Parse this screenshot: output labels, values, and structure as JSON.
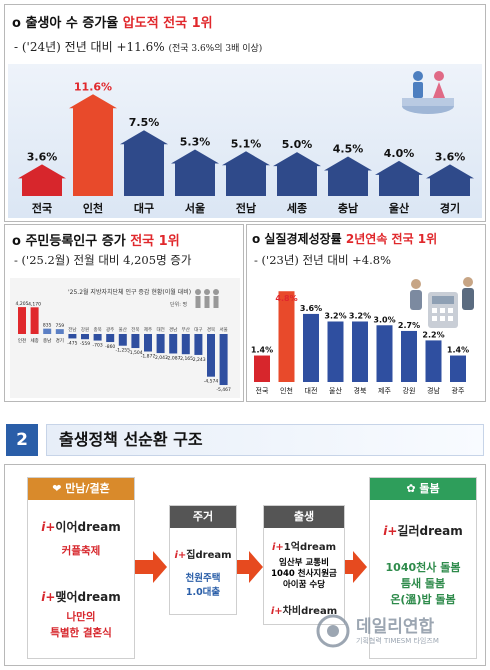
{
  "top": {
    "title_prefix": "출생아 수 증가율 ",
    "title_highlight": "압도적 전국 1위",
    "subtitle_main": "- ('24년) 전년 대비 +11.6% ",
    "subtitle_note": "(전국 3.6%의 3배 이상)"
  },
  "chart1": {
    "type": "bar",
    "categories": [
      "전국",
      "인천",
      "대구",
      "서울",
      "전남",
      "세종",
      "충남",
      "울산",
      "경기"
    ],
    "values": [
      3.6,
      11.6,
      7.5,
      5.3,
      5.1,
      5.0,
      4.5,
      4.0,
      3.6
    ],
    "value_labels": [
      "3.6%",
      "11.6%",
      "7.5%",
      "5.3%",
      "5.1%",
      "5.0%",
      "4.5%",
      "4.0%",
      "3.6%"
    ],
    "colors": [
      "#d7262c",
      "#e84a2b",
      "#2f4a8a",
      "#2f4a8a",
      "#2f4a8a",
      "#2f4a8a",
      "#2f4a8a",
      "#2f4a8a",
      "#2f4a8a"
    ],
    "ylim": [
      0,
      13
    ]
  },
  "left": {
    "title_prefix": "주민등록인구 증가 ",
    "title_highlight": "전국 1위",
    "subtitle": "- ('25.2월) 전월 대비 4,205명 증가"
  },
  "chart2": {
    "type": "bar",
    "title": "'25.2월 지방자치단체 인구 증감 현황(이월 대비)",
    "unit": "단위: 명",
    "categories": [
      "인천",
      "세종",
      "충남",
      "경기",
      "전남",
      "강원",
      "충북",
      "광주",
      "울산",
      "전북",
      "제주",
      "대전",
      "경남",
      "부산",
      "대구",
      "경북",
      "서울"
    ],
    "values": [
      4205,
      4170,
      835,
      759,
      -475,
      -559,
      -703,
      -860,
      -1255,
      -1504,
      -1877,
      -2043,
      -2087,
      -2165,
      -2243,
      -4574,
      -5467
    ],
    "value_labels": [
      "4,205",
      "4,170",
      "835",
      "759",
      "-475",
      "-559",
      "-703",
      "-860",
      "-1,255",
      "-1,504",
      "-1,877",
      "-2,043",
      "-2,087",
      "-2,165",
      "-2,243",
      "-4,574",
      "-5,467"
    ],
    "ylim": [
      -6000,
      5000
    ]
  },
  "right": {
    "title_prefix": "실질경제성장률 ",
    "title_highlight": "2년연속 전국 1위",
    "subtitle": "- ('23년) 전년 대비 +4.8%"
  },
  "chart3": {
    "type": "bar",
    "categories": [
      "전국",
      "인천",
      "대전",
      "울산",
      "경북",
      "제주",
      "강원",
      "경남",
      "광주"
    ],
    "values": [
      1.4,
      4.8,
      3.6,
      3.2,
      3.2,
      3.0,
      2.7,
      2.2,
      1.4
    ],
    "value_labels": [
      "1.4%",
      "4.8%",
      "3.6%",
      "3.2%",
      "3.2%",
      "3.0%",
      "2.7%",
      "2.2%",
      "1.4%"
    ],
    "ylim": [
      0,
      5.5
    ]
  },
  "section": {
    "number": "2",
    "title": "출생정책 선순환 구조"
  },
  "policy": {
    "col1": {
      "tag": "만남/결혼",
      "brand1_prefix": "i+",
      "brand1": "이어dream",
      "item1": "커플축제",
      "brand2_prefix": "i+",
      "brand2": "맺어dream",
      "item2_line1": "나만의",
      "item2_line2": "특별한 결혼식"
    },
    "col2": {
      "tag": "주거",
      "brand_prefix": "i+",
      "brand": "집dream",
      "item_line1": "천원주택",
      "item_line2": "1.0대출"
    },
    "col3": {
      "tag": "출생",
      "brand1_prefix": "i+",
      "brand1": "1억dream",
      "item_line1": "임산부 교통비",
      "item_line2": "1040 천사지원금",
      "item_line3": "아이꿈 수당",
      "brand2_prefix": "i+",
      "brand2": "차비dream"
    },
    "col4": {
      "tag": "돌봄",
      "brand_prefix": "i+",
      "brand": "길러dream",
      "item_line1": "1040천사 돌봄",
      "item_line2": "틈새 돌봄",
      "item_line3": "온(溫)밥 돌봄"
    }
  },
  "watermark": {
    "name": "데일리연합",
    "sub": "기획협력 TIMESM 타임즈M"
  }
}
